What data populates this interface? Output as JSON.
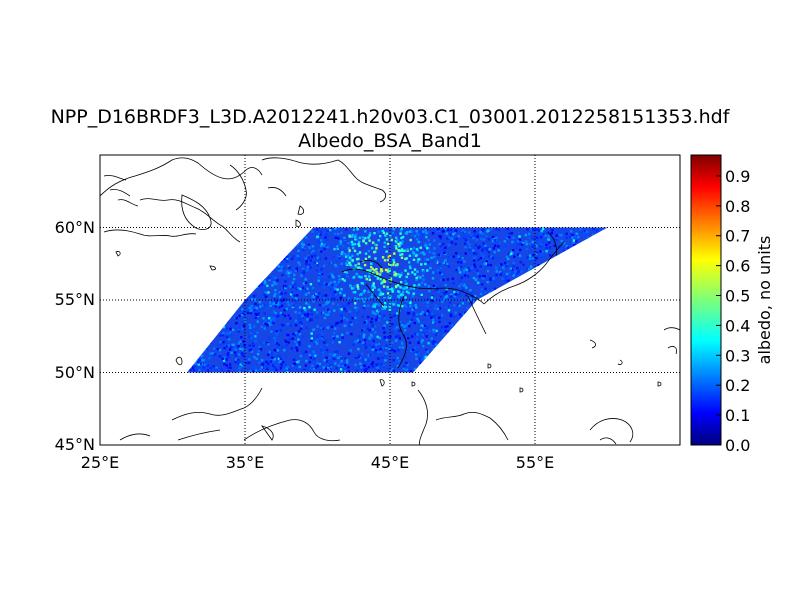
{
  "title": "NPP_D16BRDF3_L3D.A2012241.h20v03.C1_03001.2012258151353.hdf",
  "subtitle": "Albedo_BSA_Band1",
  "map": {
    "lon_range": [
      25,
      65
    ],
    "lat_range": [
      45,
      65
    ],
    "lon_ticks": [
      "25°E",
      "35°E",
      "45°E",
      "55°E"
    ],
    "lat_ticks": [
      "60°N",
      "55°N",
      "50°N",
      "45°N"
    ],
    "grid": true,
    "colormap": "jet",
    "data_footprint": [
      {
        "lat": 50,
        "lon_west": 31.0,
        "lon_east": 46.6
      },
      {
        "lat": 55,
        "lon_west": 35.0,
        "lon_east": 51.0
      },
      {
        "lat": 60,
        "lon_west": 39.7,
        "lon_east": 60.0
      }
    ],
    "high_albedo_region": {
      "lat": 57.5,
      "lon": 44.5,
      "approx_value": 0.6
    },
    "typical_value": 0.2
  },
  "colorbar": {
    "label": "albedo, no units",
    "ticks": [
      "0.0",
      "0.1",
      "0.2",
      "0.3",
      "0.4",
      "0.5",
      "0.6",
      "0.7",
      "0.8",
      "0.9"
    ],
    "min": 0.0,
    "max": 0.97
  }
}
